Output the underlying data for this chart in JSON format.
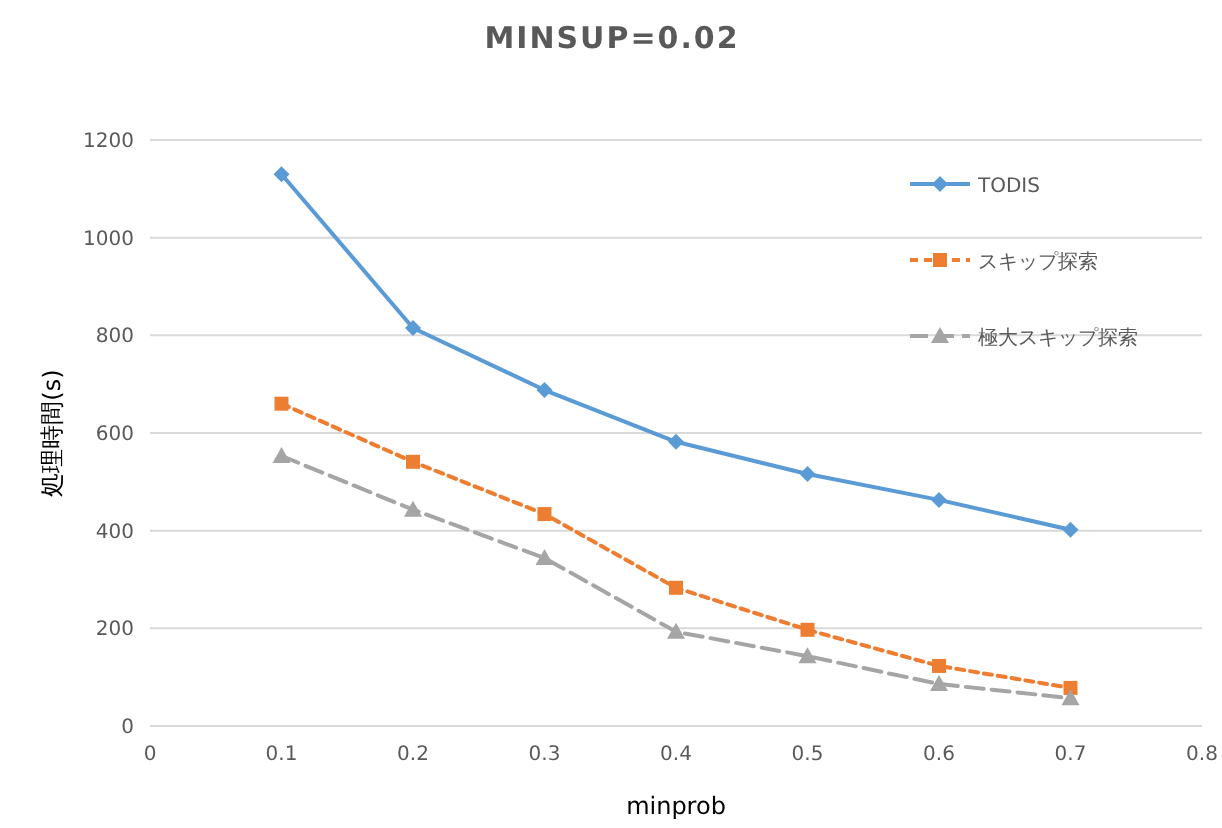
{
  "chart_data": {
    "type": "line",
    "title": "MINSUP=0.02",
    "xlabel": "minprob",
    "ylabel": "処理時間(s)",
    "x": [
      0.1,
      0.2,
      0.3,
      0.4,
      0.5,
      0.6,
      0.7
    ],
    "xlim": [
      0,
      0.8
    ],
    "xticks": [
      0,
      0.1,
      0.2,
      0.3,
      0.4,
      0.5,
      0.6,
      0.7,
      0.8
    ],
    "ylim": [
      0,
      1200
    ],
    "yticks": [
      0,
      200,
      400,
      600,
      800,
      1000,
      1200
    ],
    "grid": "y",
    "legend": "top right",
    "series": [
      {
        "name": "TODIS",
        "color": "#5b9bd5",
        "marker": "diamond",
        "line_style": "solid",
        "values": [
          1130,
          815,
          688,
          582,
          516,
          463,
          402
        ]
      },
      {
        "name": "スキップ探索",
        "color": "#ed7d31",
        "marker": "square",
        "line_style": "dotted",
        "values": [
          660,
          541,
          434,
          283,
          197,
          123,
          78
        ]
      },
      {
        "name": "極大スキップ探索",
        "color": "#a5a5a5",
        "marker": "triangle",
        "line_style": "dashed",
        "values": [
          553,
          443,
          344,
          193,
          143,
          86,
          57
        ]
      }
    ]
  }
}
